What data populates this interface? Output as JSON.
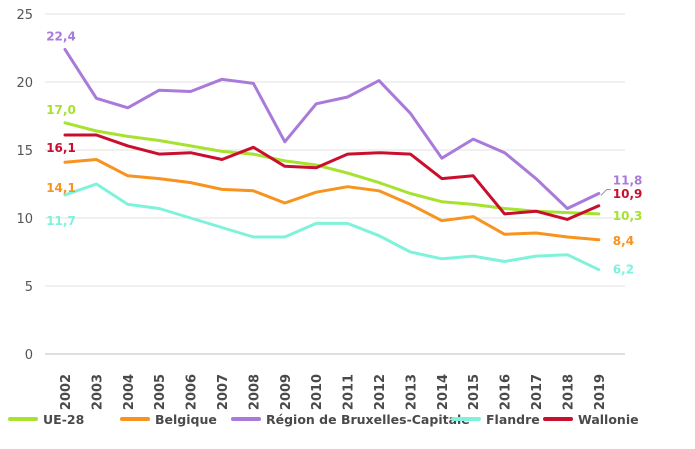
{
  "chart_data": {
    "type": "line",
    "x": [
      "2002",
      "2003",
      "2004",
      "2005",
      "2006",
      "2007",
      "2008",
      "2009",
      "2010",
      "2011",
      "2012",
      "2013",
      "2014",
      "2015",
      "2016",
      "2017",
      "2018",
      "2019"
    ],
    "ylim": [
      0,
      25
    ],
    "yticks": [
      "0",
      "5",
      "10",
      "15",
      "20",
      "25"
    ],
    "grid": "horizontal",
    "legend_position": "bottom",
    "series": [
      {
        "name": "UE-28",
        "color": "#a6e22e",
        "values": [
          17.0,
          16.4,
          16.0,
          15.7,
          15.3,
          14.9,
          14.7,
          14.2,
          13.9,
          13.3,
          12.6,
          11.8,
          11.2,
          11.0,
          10.7,
          10.5,
          10.4,
          10.3
        ]
      },
      {
        "name": "Belgique",
        "color": "#f7931e",
        "values": [
          14.1,
          14.3,
          13.1,
          12.9,
          12.6,
          12.1,
          12.0,
          11.1,
          11.9,
          12.3,
          12.0,
          11.0,
          9.8,
          10.1,
          8.8,
          8.9,
          8.6,
          8.4
        ]
      },
      {
        "name": "Région de Bruxelles-Capitale",
        "color": "#a97ad9",
        "values": [
          22.4,
          18.8,
          18.1,
          19.4,
          19.3,
          20.2,
          19.9,
          15.6,
          18.4,
          18.9,
          20.1,
          17.7,
          14.4,
          15.8,
          14.8,
          12.9,
          10.7,
          11.8
        ]
      },
      {
        "name": "Flandre",
        "color": "#7ff2dc",
        "values": [
          11.7,
          12.5,
          11.0,
          10.7,
          10.0,
          9.3,
          8.6,
          8.6,
          9.6,
          9.6,
          8.7,
          7.5,
          7.0,
          7.2,
          6.8,
          7.2,
          7.3,
          6.2
        ]
      },
      {
        "name": "Wallonie",
        "color": "#c8102e",
        "values": [
          16.1,
          16.1,
          15.3,
          14.7,
          14.8,
          14.3,
          15.2,
          13.8,
          13.7,
          14.7,
          14.8,
          14.7,
          12.9,
          13.1,
          10.3,
          10.5,
          9.9,
          10.9
        ]
      }
    ],
    "data_labels": [
      {
        "series": "UE-28",
        "year": "2002",
        "text": "17,0"
      },
      {
        "series": "Belgique",
        "year": "2002",
        "text": "14,1"
      },
      {
        "series": "Région de Bruxelles-Capitale",
        "year": "2002",
        "text": "22,4"
      },
      {
        "series": "Flandre",
        "year": "2002",
        "text": "11,7"
      },
      {
        "series": "Wallonie",
        "year": "2002",
        "text": "16,1"
      },
      {
        "series": "Région de Bruxelles-Capitale",
        "year": "2019",
        "text": "11,8"
      },
      {
        "series": "Wallonie",
        "year": "2019",
        "text": "10,9"
      },
      {
        "series": "UE-28",
        "year": "2019",
        "text": "10,3"
      },
      {
        "series": "Belgique",
        "year": "2019",
        "text": "8,4"
      },
      {
        "series": "Flandre",
        "year": "2019",
        "text": "6,2"
      }
    ]
  }
}
